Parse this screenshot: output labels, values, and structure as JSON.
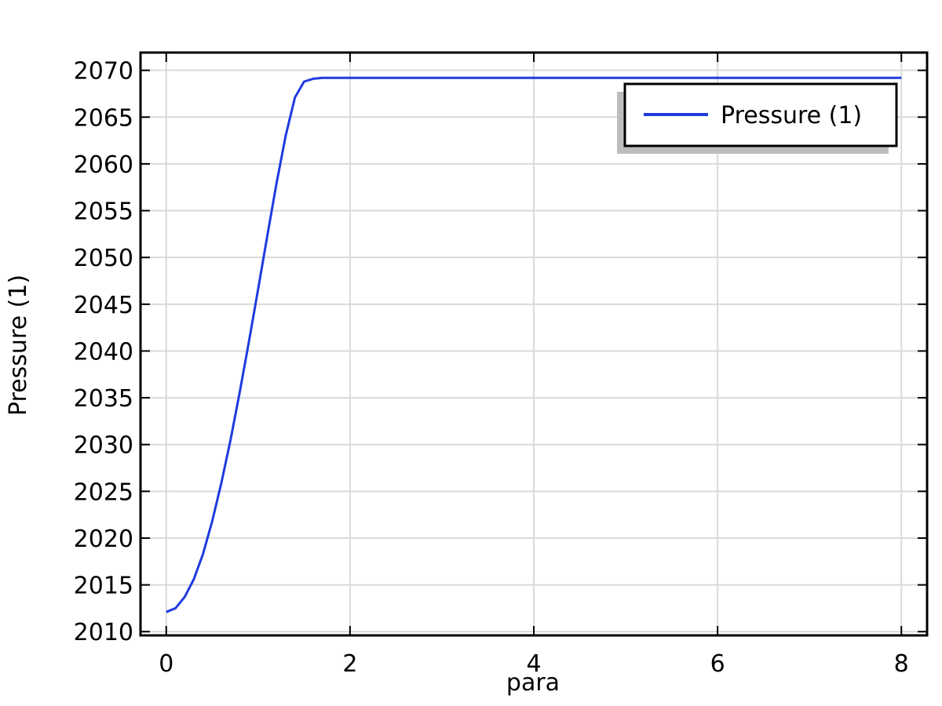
{
  "chart_data": {
    "type": "line",
    "xlabel": "para",
    "ylabel": "Pressure (1)",
    "xlim": [
      -0.28,
      8.28
    ],
    "ylim": [
      2009.6,
      2071.9
    ],
    "xticks": [
      0,
      2,
      4,
      6,
      8
    ],
    "yticks": [
      2010,
      2015,
      2020,
      2025,
      2030,
      2035,
      2040,
      2045,
      2050,
      2055,
      2060,
      2065,
      2070
    ],
    "grid": true,
    "legend_position": "top-right",
    "series": [
      {
        "name": "Pressure (1)",
        "color": "#1f3be0",
        "x": [
          0,
          0.1,
          0.2,
          0.3,
          0.4,
          0.5,
          0.6,
          0.7,
          0.8,
          0.9,
          1.0,
          1.1,
          1.2,
          1.3,
          1.4,
          1.5,
          1.6,
          1.7,
          1.8,
          2.0,
          3.0,
          4.0,
          5.0,
          6.0,
          7.0,
          8.0
        ],
        "y": [
          2012.1,
          2012.5,
          2013.7,
          2015.6,
          2018.3,
          2021.8,
          2025.9,
          2030.5,
          2035.6,
          2041.0,
          2046.6,
          2052.3,
          2057.9,
          2063.0,
          2067.1,
          2068.8,
          2069.1,
          2069.2,
          2069.2,
          2069.2,
          2069.2,
          2069.2,
          2069.2,
          2069.2,
          2069.2,
          2069.2
        ]
      }
    ]
  }
}
